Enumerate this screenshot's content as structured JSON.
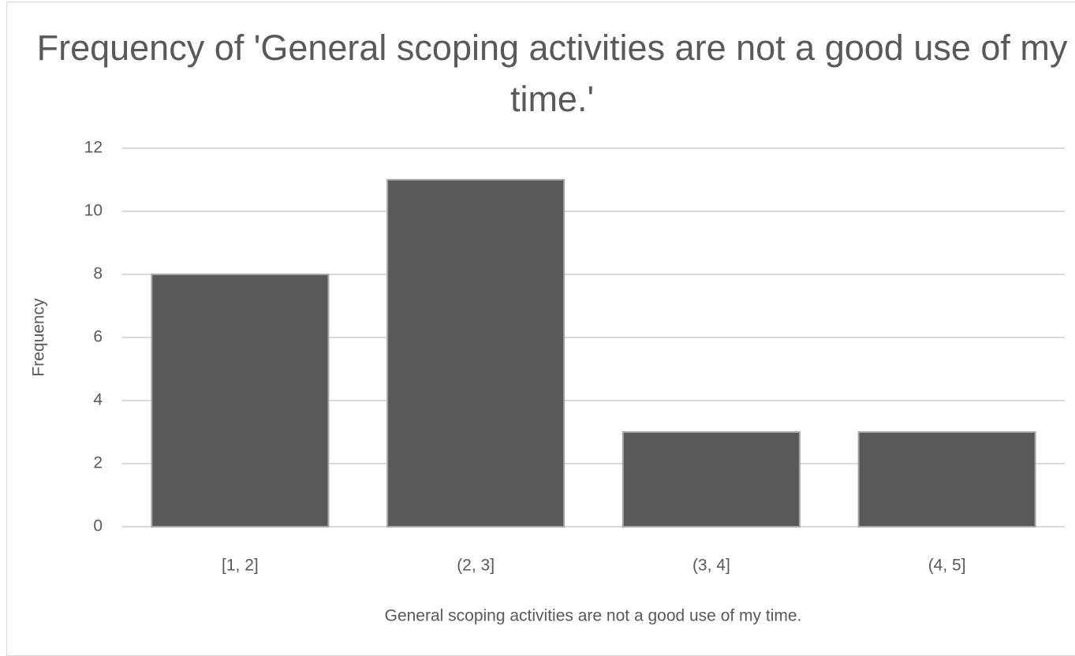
{
  "chart_data": {
    "type": "bar",
    "title": "Frequency of 'General scoping activities are not a good use of my time.'",
    "x_label": "General scoping activities are not a good use of my time.",
    "y_label": "Frequency",
    "categories": [
      "[1, 2]",
      "(2, 3]",
      "(3, 4]",
      "(4, 5]"
    ],
    "values": [
      8,
      11,
      3,
      3
    ],
    "color": "#595959",
    "ylim": [
      0,
      12
    ],
    "yticks": [
      0,
      2,
      4,
      6,
      8,
      10,
      12
    ],
    "grid": true
  }
}
